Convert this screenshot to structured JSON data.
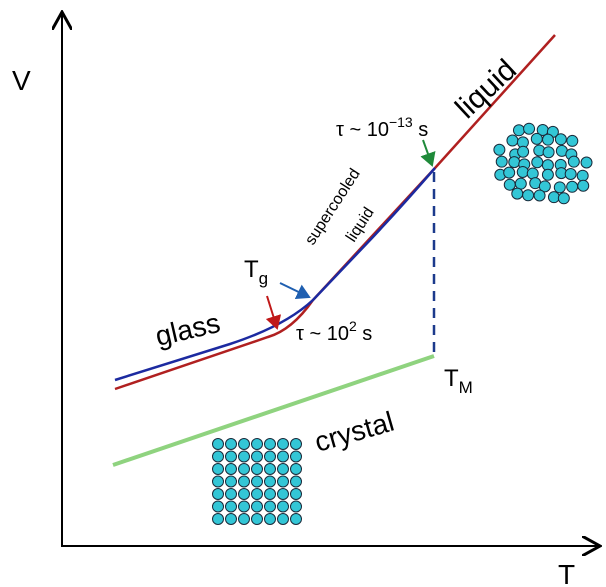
{
  "axes": {
    "y_label": "V",
    "x_label": "T"
  },
  "labels": {
    "liquid": "liquid",
    "supercooled_line1": "supercooled",
    "supercooled_line2": "liquid",
    "glass": "glass",
    "crystal": "crystal",
    "tg_base": "T",
    "tg_sub": "g",
    "tm_base": "T",
    "tm_sub": "M",
    "tau_fast": "τ ~ 10",
    "tau_fast_exp": "−13",
    "tau_fast_unit": " s",
    "tau_slow": "τ ~ 10",
    "tau_slow_exp": "2",
    "tau_slow_unit": " s"
  },
  "colors": {
    "liquid_line": "#b02020",
    "glass_line": "#1c2aa0",
    "crystal_line": "#8fd37f",
    "dashed_line": "#1c3a8c",
    "atom_fill": "#33c6d6",
    "atom_stroke": "#1a2a3a",
    "arrow_red": "#c01818",
    "arrow_blue": "#1f5fb0",
    "arrow_green": "#1f8a3a"
  },
  "illustrations": {
    "liquid_structure": "disordered-atoms",
    "crystal_structure": "ordered-atoms"
  }
}
